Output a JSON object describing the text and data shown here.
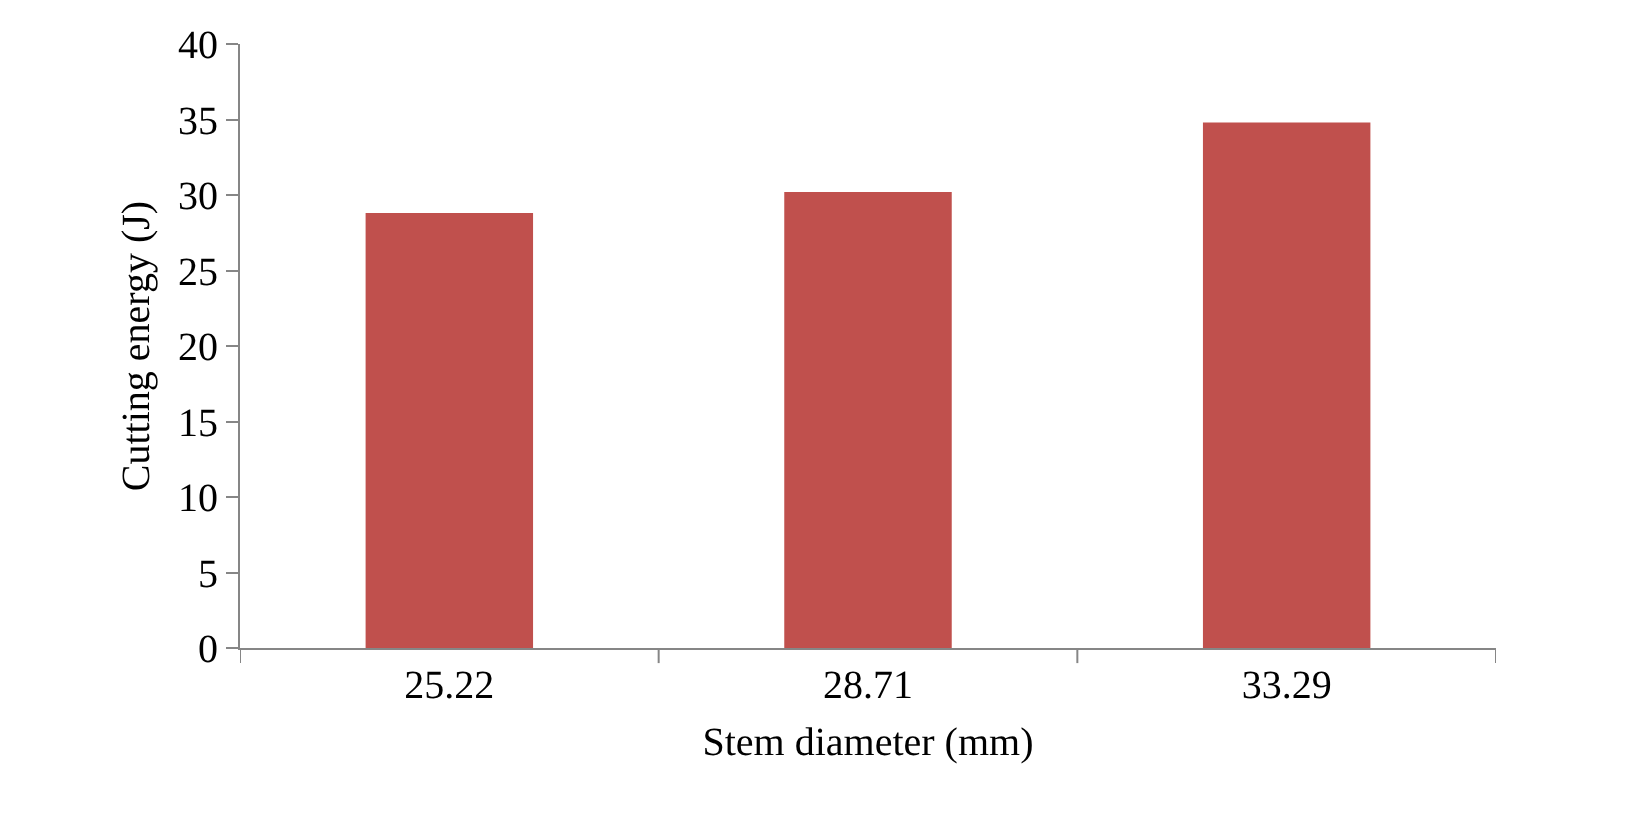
{
  "chart_data": {
    "type": "bar",
    "xlabel": "Stem diameter (mm)",
    "ylabel": "Cutting energy (J)",
    "categories": [
      "25.22",
      "28.71",
      "33.29"
    ],
    "values": [
      28.8,
      30.2,
      34.8
    ],
    "color": "#c0504d",
    "ylim": [
      0,
      40
    ],
    "yticks": [
      0,
      5,
      10,
      15,
      20,
      25,
      30,
      35,
      40
    ],
    "grid": false
  }
}
